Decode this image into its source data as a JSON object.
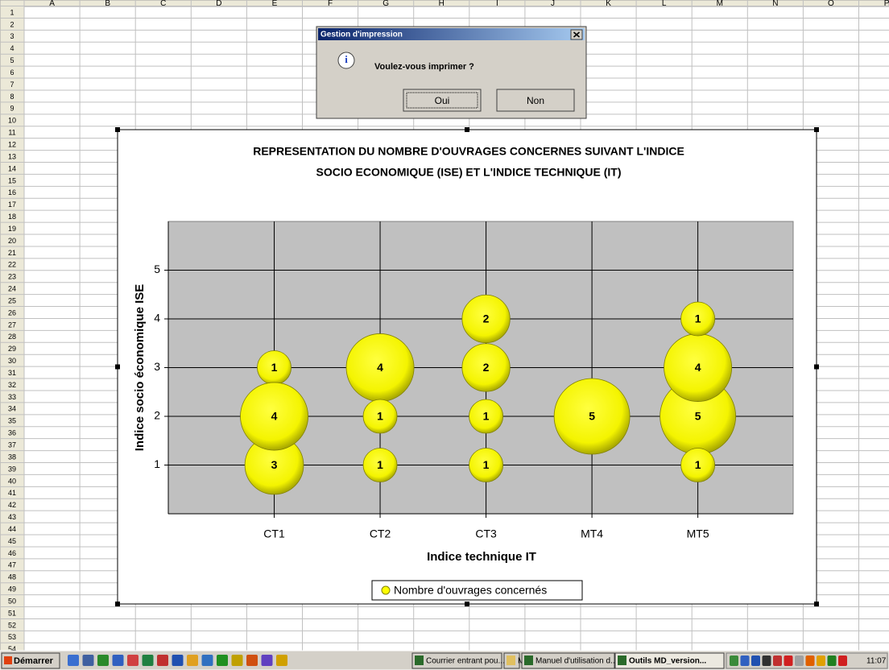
{
  "spreadsheet": {
    "columns": [
      "A",
      "B",
      "C",
      "D",
      "E",
      "F",
      "G",
      "H",
      "I",
      "J",
      "K",
      "L",
      "M",
      "N",
      "O",
      "P"
    ],
    "rows": [
      1,
      2,
      3,
      4,
      5,
      6,
      7,
      8,
      9,
      10,
      11,
      12,
      13,
      14,
      15,
      16,
      17,
      18,
      19,
      20,
      21,
      22,
      23,
      24,
      25,
      26,
      27,
      28,
      29,
      30,
      31,
      32,
      33,
      34,
      35,
      36,
      37,
      38,
      39,
      40,
      41,
      42,
      43,
      44,
      45,
      46,
      47,
      48,
      49,
      50,
      51,
      52,
      53,
      54
    ]
  },
  "dialog": {
    "title": "Gestion d'impression",
    "message": "Voulez-vous imprimer ?",
    "buttons": [
      "Oui",
      "Non"
    ]
  },
  "chart_data": {
    "type": "bubble",
    "title": [
      "REPRESENTATION DU NOMBRE D'OUVRAGES CONCERNES SUIVANT L'INDICE",
      "SOCIO ECONOMIQUE (ISE) ET L'INDICE TECHNIQUE (IT)"
    ],
    "x_label": "Indice technique IT",
    "y_label": "Indice socio économique ISE",
    "xlim": [
      0,
      5.9
    ],
    "ylim": [
      0,
      6
    ],
    "xticks": [
      {
        "value": 1,
        "label": "CT1"
      },
      {
        "value": 2,
        "label": "CT2"
      },
      {
        "value": 3,
        "label": "CT3"
      },
      {
        "value": 4,
        "label": "MT4"
      },
      {
        "value": 5,
        "label": "MT5"
      }
    ],
    "yticks": [
      1,
      2,
      3,
      4,
      5
    ],
    "grid": true,
    "legend": "bottom",
    "series": [
      {
        "name": "Nombre d'ouvrages concernés",
        "color": "#ffff00",
        "x": [
          1,
          1,
          1,
          2,
          2,
          2,
          3,
          3,
          3,
          3,
          4,
          5,
          5,
          5,
          5
        ],
        "values": [
          3,
          1,
          2,
          3,
          2,
          1,
          4,
          3,
          2,
          1,
          2,
          2,
          3,
          4,
          1
        ],
        "sizes": [
          1,
          3,
          4,
          4,
          1,
          1,
          2,
          2,
          1,
          1,
          5,
          5,
          4,
          1,
          1
        ]
      }
    ]
  },
  "taskbar": {
    "start": "Démarrer",
    "tasks": [
      "Courrier entrant pou...",
      "MD",
      "Manuel d'utilisation d...",
      "Outils MD_version..."
    ],
    "clock": "11:07"
  }
}
